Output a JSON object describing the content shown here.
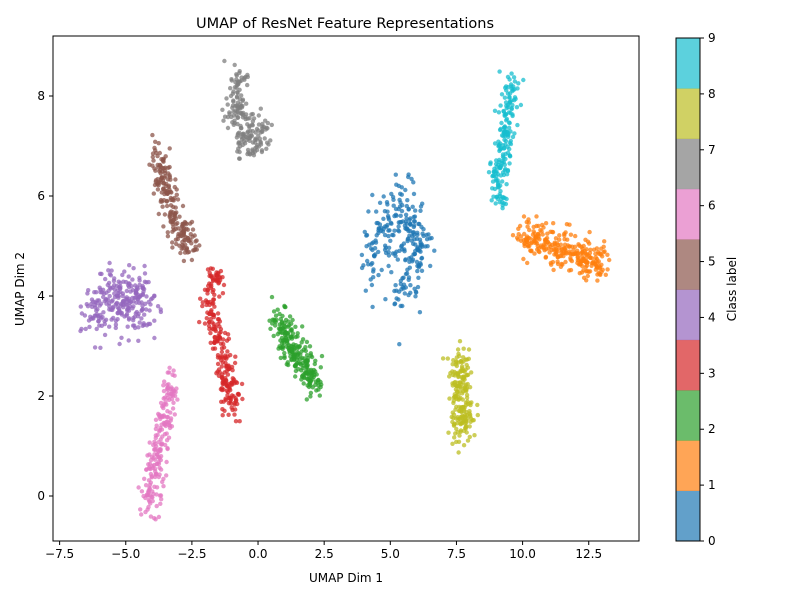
{
  "chart_data": {
    "type": "scatter",
    "title": "UMAP of ResNet Feature Representations",
    "xlabel": "UMAP Dim 1",
    "ylabel": "UMAP Dim 2",
    "xlim": [
      -7.75,
      14.4
    ],
    "ylim": [
      -0.9,
      9.2
    ],
    "x_ticks": [
      -7.5,
      -5.0,
      -2.5,
      0.0,
      2.5,
      5.0,
      7.5,
      10.0,
      12.5
    ],
    "x_tick_labels": [
      "−7.5",
      "−5.0",
      "−2.5",
      "0.0",
      "2.5",
      "5.0",
      "7.5",
      "10.0",
      "12.5"
    ],
    "y_ticks": [
      0,
      2,
      4,
      6,
      8
    ],
    "y_tick_labels": [
      "0",
      "2",
      "4",
      "6",
      "8"
    ],
    "grid": false,
    "colorbar": {
      "label": "Class label",
      "range": [
        0,
        9
      ],
      "ticks": [
        0,
        1,
        2,
        3,
        4,
        5,
        6,
        7,
        8,
        9
      ],
      "tick_labels": [
        "0",
        "1",
        "2",
        "3",
        "4",
        "5",
        "6",
        "7",
        "8",
        "9"
      ],
      "colors": [
        "#1f77b4",
        "#ff7f0e",
        "#2ca02c",
        "#d62728",
        "#9467bd",
        "#8c564b",
        "#e377c2",
        "#7f7f7f",
        "#bcbd22",
        "#17becf"
      ]
    },
    "clusters": [
      {
        "label": 0,
        "path": [
          [
            4.2,
            4.4
          ],
          [
            4.8,
            5.4
          ],
          [
            5.6,
            5.8
          ],
          [
            6.1,
            4.8
          ],
          [
            5.4,
            4.0
          ]
        ],
        "spread": 0.32,
        "count": 260
      },
      {
        "label": 1,
        "path": [
          [
            9.9,
            5.2
          ],
          [
            11.0,
            5.0
          ],
          [
            12.2,
            4.8
          ],
          [
            13.0,
            4.7
          ]
        ],
        "spread": 0.22,
        "count": 280
      },
      {
        "label": 2,
        "path": [
          [
            0.8,
            3.5
          ],
          [
            1.2,
            3.0
          ],
          [
            1.8,
            2.6
          ],
          [
            2.1,
            2.2
          ]
        ],
        "spread": 0.2,
        "count": 240
      },
      {
        "label": 3,
        "path": [
          [
            -1.6,
            4.4
          ],
          [
            -1.8,
            3.8
          ],
          [
            -1.4,
            3.0
          ],
          [
            -1.1,
            2.2
          ],
          [
            -1.0,
            1.8
          ]
        ],
        "spread": 0.18,
        "count": 230
      },
      {
        "label": 4,
        "path": [
          [
            -6.3,
            3.6
          ],
          [
            -5.6,
            3.9
          ],
          [
            -4.8,
            4.0
          ],
          [
            -4.3,
            3.6
          ]
        ],
        "spread": 0.32,
        "count": 260
      },
      {
        "label": 5,
        "path": [
          [
            -3.8,
            6.9
          ],
          [
            -3.5,
            6.2
          ],
          [
            -3.1,
            5.5
          ],
          [
            -2.6,
            4.9
          ]
        ],
        "spread": 0.2,
        "count": 210
      },
      {
        "label": 6,
        "path": [
          [
            -4.1,
            -0.3
          ],
          [
            -3.9,
            0.5
          ],
          [
            -3.6,
            1.4
          ],
          [
            -3.3,
            2.3
          ]
        ],
        "spread": 0.2,
        "count": 200
      },
      {
        "label": 7,
        "path": [
          [
            -0.7,
            8.4
          ],
          [
            -0.9,
            7.6
          ],
          [
            -0.4,
            7.0
          ],
          [
            0.1,
            7.4
          ]
        ],
        "spread": 0.22,
        "count": 190
      },
      {
        "label": 8,
        "path": [
          [
            7.6,
            2.8
          ],
          [
            7.7,
            2.2
          ],
          [
            7.8,
            1.6
          ],
          [
            7.6,
            1.3
          ]
        ],
        "spread": 0.2,
        "count": 200
      },
      {
        "label": 9,
        "path": [
          [
            9.6,
            8.4
          ],
          [
            9.4,
            7.4
          ],
          [
            9.2,
            6.6
          ],
          [
            9.1,
            6.0
          ]
        ],
        "spread": 0.18,
        "count": 190
      }
    ]
  }
}
